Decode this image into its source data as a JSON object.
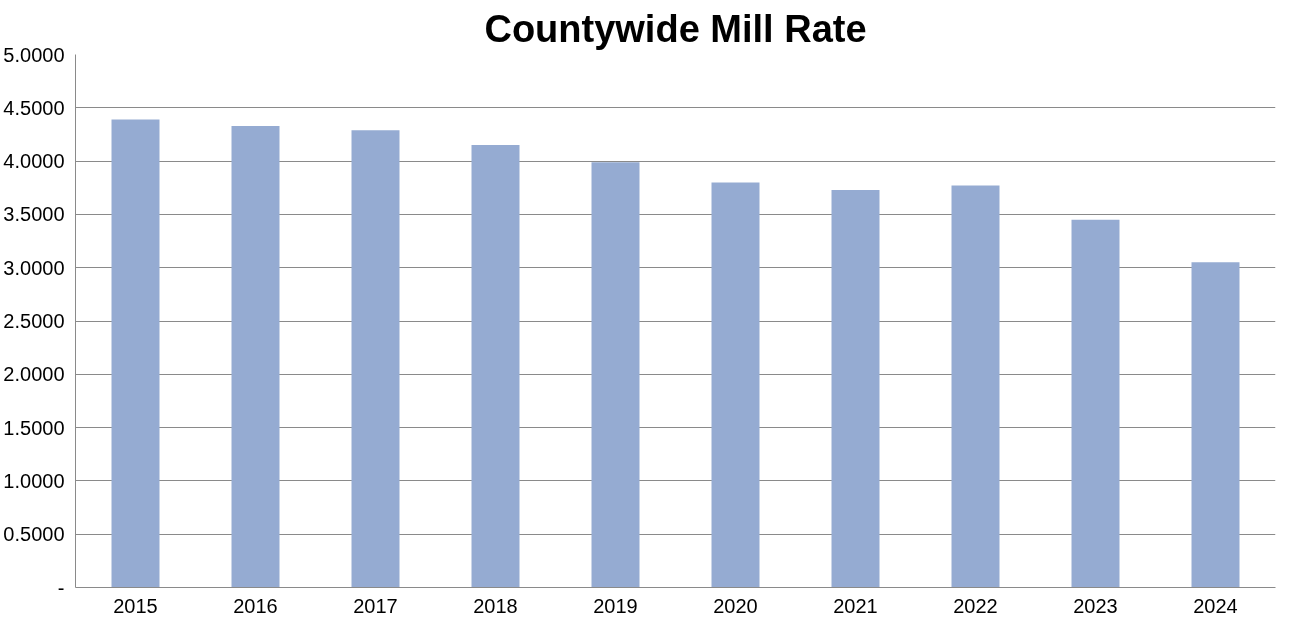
{
  "chart_data": {
    "type": "bar",
    "title": "Countywide Mill Rate",
    "categories": [
      "2015",
      "2016",
      "2017",
      "2018",
      "2019",
      "2020",
      "2021",
      "2022",
      "2023",
      "2024"
    ],
    "values": [
      4.39,
      4.33,
      4.29,
      4.15,
      3.99,
      3.8,
      3.73,
      3.77,
      3.45,
      3.05
    ],
    "color": "#95abd2",
    "ylim": [
      0,
      5
    ],
    "yticks": [
      {
        "value": 0,
        "label": "-"
      },
      {
        "value": 0.5,
        "label": "0.5000"
      },
      {
        "value": 1,
        "label": "1.0000"
      },
      {
        "value": 1.5,
        "label": "1.5000"
      },
      {
        "value": 2,
        "label": "2.0000"
      },
      {
        "value": 2.5,
        "label": "2.5000"
      },
      {
        "value": 3,
        "label": "3.0000"
      },
      {
        "value": 3.5,
        "label": "3.5000"
      },
      {
        "value": 4,
        "label": "4.0000"
      },
      {
        "value": 4.5,
        "label": "4.5000"
      },
      {
        "value": 5,
        "label": "5.0000"
      }
    ],
    "grid": "y"
  }
}
